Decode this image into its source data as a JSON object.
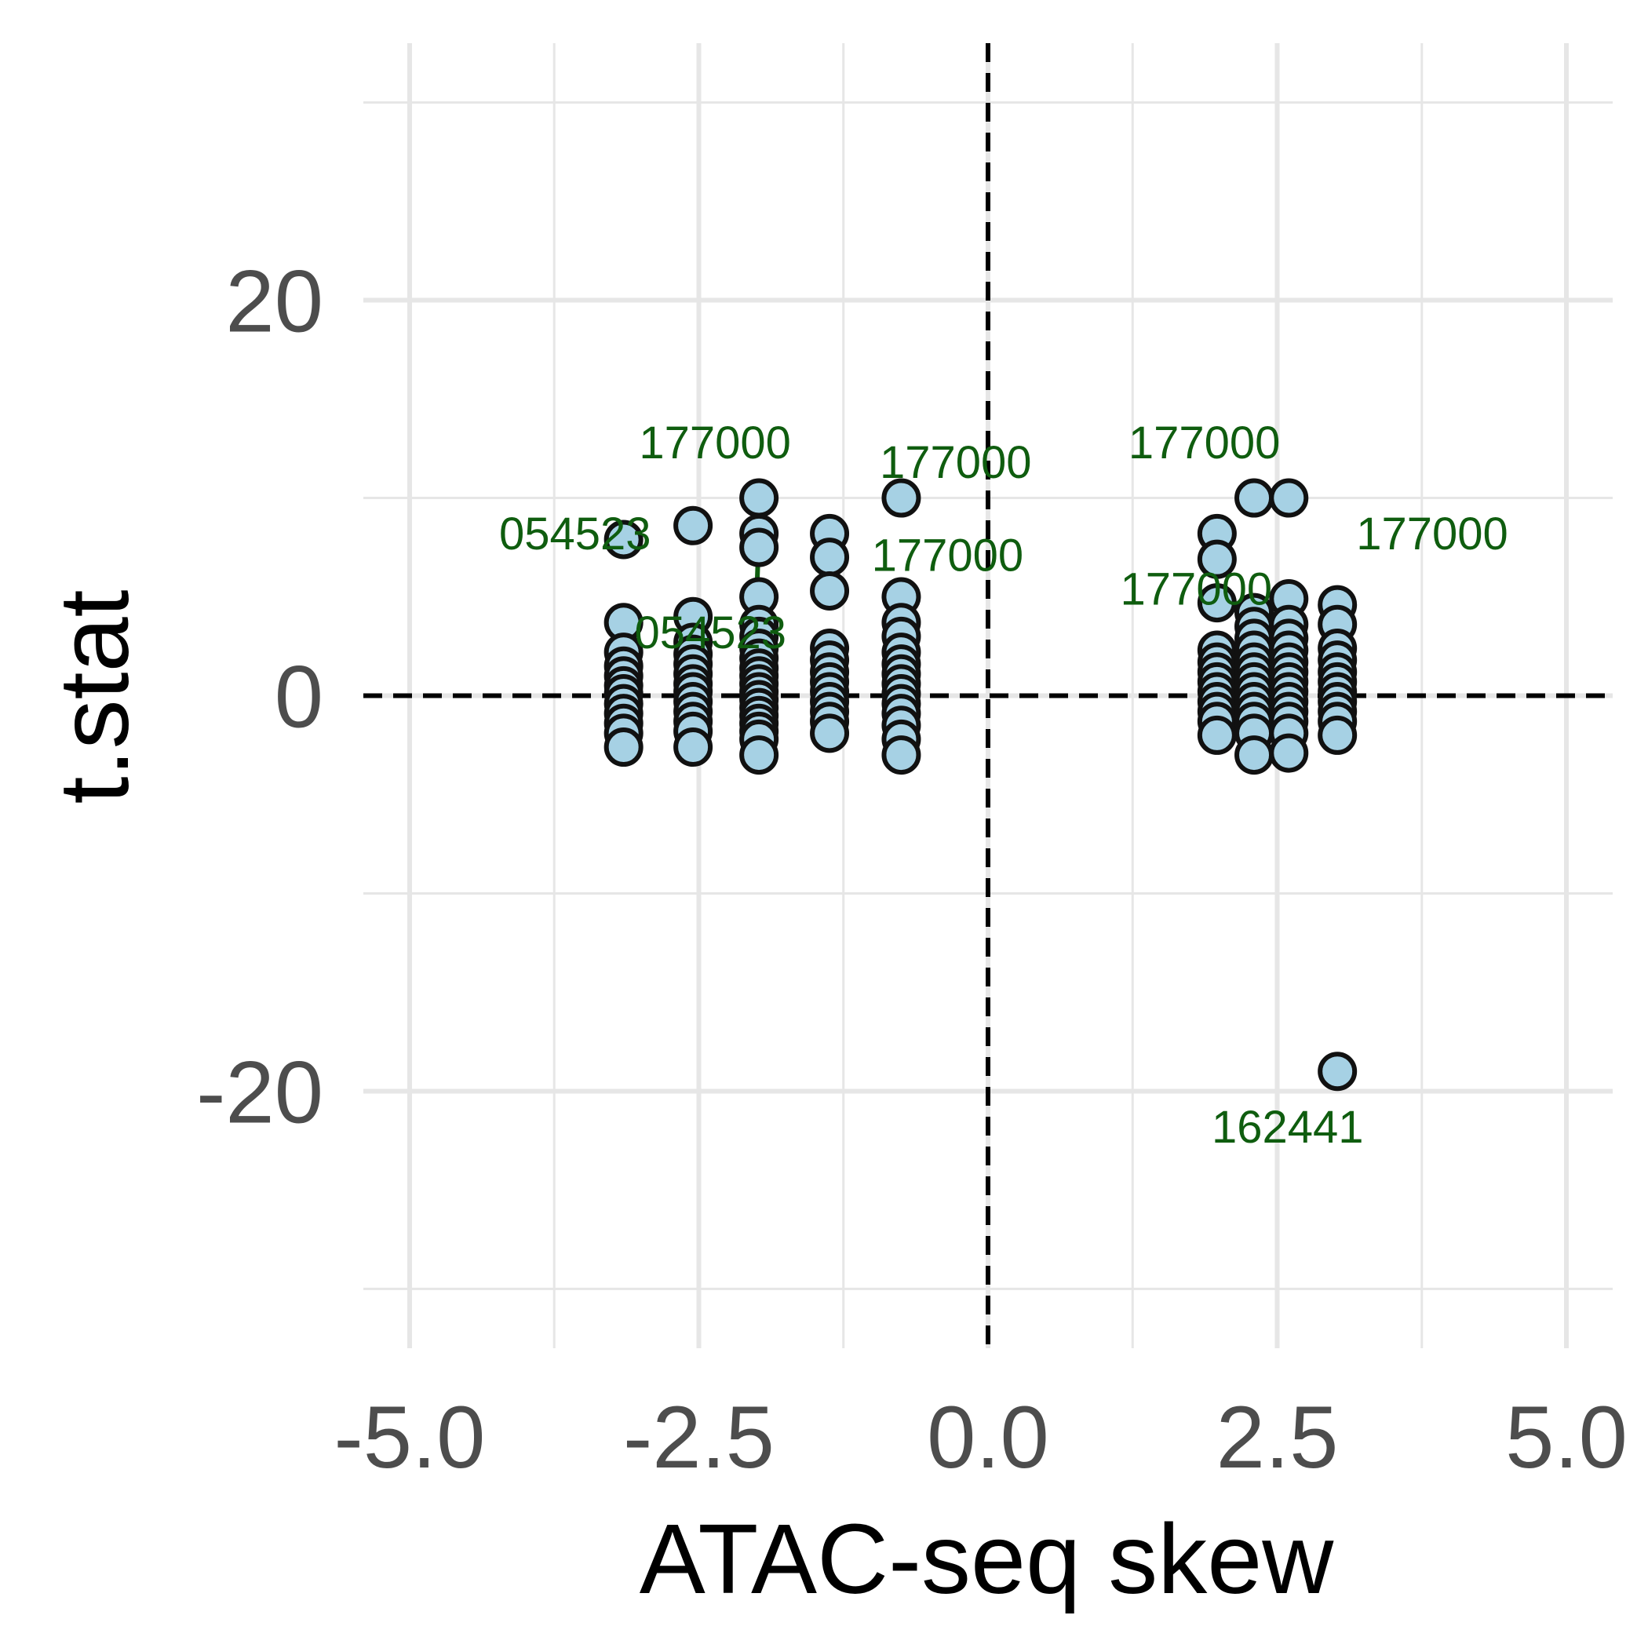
{
  "colors": {
    "point_fill": "#a6d1e4",
    "point_stroke": "#111111",
    "annotation": "#0f5d0f",
    "grid": "#e6e6e6",
    "tick_text": "#4d4d4d",
    "reference_line": "#000000"
  },
  "chart_data": {
    "type": "scatter",
    "xlabel": "ATAC-seq skew",
    "ylabel": "t.stat",
    "xlim": [
      -5.4,
      5.4
    ],
    "ylim": [
      -33,
      33
    ],
    "x_ticks": [
      -5.0,
      -2.5,
      0.0,
      2.5,
      5.0
    ],
    "x_tick_labels": [
      "-5.0",
      "-2.5",
      "0.0",
      "2.5",
      "5.0"
    ],
    "y_ticks": [
      -20,
      0,
      20
    ],
    "y_tick_labels": [
      "-20",
      "0",
      "20"
    ],
    "grid": true,
    "reference_lines": {
      "x": 0,
      "y": 0,
      "style": "dashed"
    },
    "series": [
      {
        "points": [
          {
            "x": -3.15,
            "y": 7.9
          },
          {
            "x": -3.15,
            "y": 3.7
          },
          {
            "x": -3.15,
            "y": 2.2
          },
          {
            "x": -3.15,
            "y": 1.5
          },
          {
            "x": -3.15,
            "y": 1.0
          },
          {
            "x": -3.15,
            "y": 0.5
          },
          {
            "x": -3.15,
            "y": 0.1
          },
          {
            "x": -3.15,
            "y": -0.4
          },
          {
            "x": -3.15,
            "y": -0.9
          },
          {
            "x": -3.15,
            "y": -1.4
          },
          {
            "x": -3.15,
            "y": -1.9
          },
          {
            "x": -3.15,
            "y": -2.6
          },
          {
            "x": -2.55,
            "y": 8.6
          },
          {
            "x": -2.55,
            "y": 4.0
          },
          {
            "x": -2.55,
            "y": 2.7
          },
          {
            "x": -2.55,
            "y": 2.1
          },
          {
            "x": -2.55,
            "y": 1.6
          },
          {
            "x": -2.55,
            "y": 1.1
          },
          {
            "x": -2.55,
            "y": 0.6
          },
          {
            "x": -2.55,
            "y": 0.2
          },
          {
            "x": -2.55,
            "y": -0.3
          },
          {
            "x": -2.55,
            "y": -0.8
          },
          {
            "x": -2.55,
            "y": -1.3
          },
          {
            "x": -2.55,
            "y": -1.8
          },
          {
            "x": -2.55,
            "y": -2.6
          },
          {
            "x": -1.98,
            "y": 10.0
          },
          {
            "x": -1.98,
            "y": 8.2
          },
          {
            "x": -1.98,
            "y": 7.5
          },
          {
            "x": -1.98,
            "y": 5.0
          },
          {
            "x": -1.98,
            "y": 3.6
          },
          {
            "x": -1.98,
            "y": 3.0
          },
          {
            "x": -1.98,
            "y": 2.4
          },
          {
            "x": -1.98,
            "y": 1.9
          },
          {
            "x": -1.98,
            "y": 1.4
          },
          {
            "x": -1.98,
            "y": 1.0
          },
          {
            "x": -1.98,
            "y": 0.6
          },
          {
            "x": -1.98,
            "y": 0.2
          },
          {
            "x": -1.98,
            "y": -0.2
          },
          {
            "x": -1.98,
            "y": -0.6
          },
          {
            "x": -1.98,
            "y": -1.0
          },
          {
            "x": -1.98,
            "y": -1.4
          },
          {
            "x": -1.98,
            "y": -1.8
          },
          {
            "x": -1.98,
            "y": -2.2
          },
          {
            "x": -1.98,
            "y": -3.0
          },
          {
            "x": -1.37,
            "y": 8.2
          },
          {
            "x": -1.37,
            "y": 7.0
          },
          {
            "x": -1.37,
            "y": 5.3
          },
          {
            "x": -1.37,
            "y": 2.4
          },
          {
            "x": -1.37,
            "y": 1.8
          },
          {
            "x": -1.37,
            "y": 1.2
          },
          {
            "x": -1.37,
            "y": 0.7
          },
          {
            "x": -1.37,
            "y": 0.2
          },
          {
            "x": -1.37,
            "y": -0.3
          },
          {
            "x": -1.37,
            "y": -0.8
          },
          {
            "x": -1.37,
            "y": -1.3
          },
          {
            "x": -1.37,
            "y": -1.9
          },
          {
            "x": -0.75,
            "y": 10.0
          },
          {
            "x": -0.75,
            "y": 5.0
          },
          {
            "x": -0.75,
            "y": 3.7
          },
          {
            "x": -0.75,
            "y": 3.0
          },
          {
            "x": -0.75,
            "y": 2.2
          },
          {
            "x": -0.75,
            "y": 1.6
          },
          {
            "x": -0.75,
            "y": 1.1
          },
          {
            "x": -0.75,
            "y": 0.6
          },
          {
            "x": -0.75,
            "y": 0.1
          },
          {
            "x": -0.75,
            "y": -0.4
          },
          {
            "x": -0.75,
            "y": -0.9
          },
          {
            "x": -0.75,
            "y": -1.5
          },
          {
            "x": -0.75,
            "y": -2.2
          },
          {
            "x": -0.75,
            "y": -3.0
          },
          {
            "x": 1.98,
            "y": 8.2
          },
          {
            "x": 1.98,
            "y": 6.9
          },
          {
            "x": 1.98,
            "y": 4.7
          },
          {
            "x": 1.98,
            "y": 2.3
          },
          {
            "x": 1.98,
            "y": 1.7
          },
          {
            "x": 1.98,
            "y": 1.2
          },
          {
            "x": 1.98,
            "y": 0.7
          },
          {
            "x": 1.98,
            "y": 0.2
          },
          {
            "x": 1.98,
            "y": -0.3
          },
          {
            "x": 1.98,
            "y": -0.8
          },
          {
            "x": 1.98,
            "y": -1.3
          },
          {
            "x": 1.98,
            "y": -2.0
          },
          {
            "x": 2.3,
            "y": 10.0
          },
          {
            "x": 2.3,
            "y": 4.2
          },
          {
            "x": 2.3,
            "y": 3.5
          },
          {
            "x": 2.3,
            "y": 2.9
          },
          {
            "x": 2.3,
            "y": 2.3
          },
          {
            "x": 2.3,
            "y": 1.7
          },
          {
            "x": 2.3,
            "y": 1.2
          },
          {
            "x": 2.3,
            "y": 0.7
          },
          {
            "x": 2.3,
            "y": 0.2
          },
          {
            "x": 2.3,
            "y": -0.3
          },
          {
            "x": 2.3,
            "y": -0.8
          },
          {
            "x": 2.3,
            "y": -1.3
          },
          {
            "x": 2.3,
            "y": -1.9
          },
          {
            "x": 2.3,
            "y": -3.0
          },
          {
            "x": 2.6,
            "y": 10.0
          },
          {
            "x": 2.6,
            "y": 4.9
          },
          {
            "x": 2.6,
            "y": 3.6
          },
          {
            "x": 2.6,
            "y": 2.9
          },
          {
            "x": 2.6,
            "y": 2.3
          },
          {
            "x": 2.6,
            "y": 1.7
          },
          {
            "x": 2.6,
            "y": 1.2
          },
          {
            "x": 2.6,
            "y": 0.7
          },
          {
            "x": 2.6,
            "y": 0.2
          },
          {
            "x": 2.6,
            "y": -0.3
          },
          {
            "x": 2.6,
            "y": -0.8
          },
          {
            "x": 2.6,
            "y": -1.3
          },
          {
            "x": 2.6,
            "y": -1.9
          },
          {
            "x": 2.6,
            "y": -2.9
          },
          {
            "x": 3.02,
            "y": 4.6
          },
          {
            "x": 3.02,
            "y": 3.6
          },
          {
            "x": 3.02,
            "y": 2.4
          },
          {
            "x": 3.02,
            "y": 1.8
          },
          {
            "x": 3.02,
            "y": 1.2
          },
          {
            "x": 3.02,
            "y": 0.7
          },
          {
            "x": 3.02,
            "y": 0.2
          },
          {
            "x": 3.02,
            "y": -0.3
          },
          {
            "x": 3.02,
            "y": -0.8
          },
          {
            "x": 3.02,
            "y": -1.3
          },
          {
            "x": 3.02,
            "y": -2.0
          },
          {
            "x": 3.02,
            "y": -19.0
          }
        ]
      }
    ],
    "annotations": [
      {
        "text": "054523",
        "x": -3.57,
        "y": 8.2,
        "anchor": {
          "x": -3.15,
          "y": 7.9
        }
      },
      {
        "text": "177000",
        "x": -2.36,
        "y": 12.8,
        "anchor": {
          "x": -2.55,
          "y": 8.6
        }
      },
      {
        "text": "054523",
        "x": -2.4,
        "y": 3.2,
        "anchor": {
          "x": -1.98,
          "y": 8.2
        },
        "leader": true
      },
      {
        "text": "177000",
        "x": -0.28,
        "y": 11.8,
        "anchor": {
          "x": -0.75,
          "y": 10.0
        }
      },
      {
        "text": "177000",
        "x": -0.35,
        "y": 7.1,
        "anchor": {
          "x": -1.37,
          "y": 8.2
        }
      },
      {
        "text": "177000",
        "x": 1.87,
        "y": 12.8,
        "anchor": {
          "x": 2.3,
          "y": 10.0
        }
      },
      {
        "text": "177000",
        "x": 1.8,
        "y": 5.4,
        "anchor": {
          "x": 1.98,
          "y": 6.9
        }
      },
      {
        "text": "177000",
        "x": 3.84,
        "y": 8.2,
        "anchor": {
          "x": 2.6,
          "y": 10.0
        }
      },
      {
        "text": "162441",
        "x": 2.59,
        "y": -21.8,
        "anchor": {
          "x": 3.02,
          "y": -19.0
        }
      }
    ]
  }
}
